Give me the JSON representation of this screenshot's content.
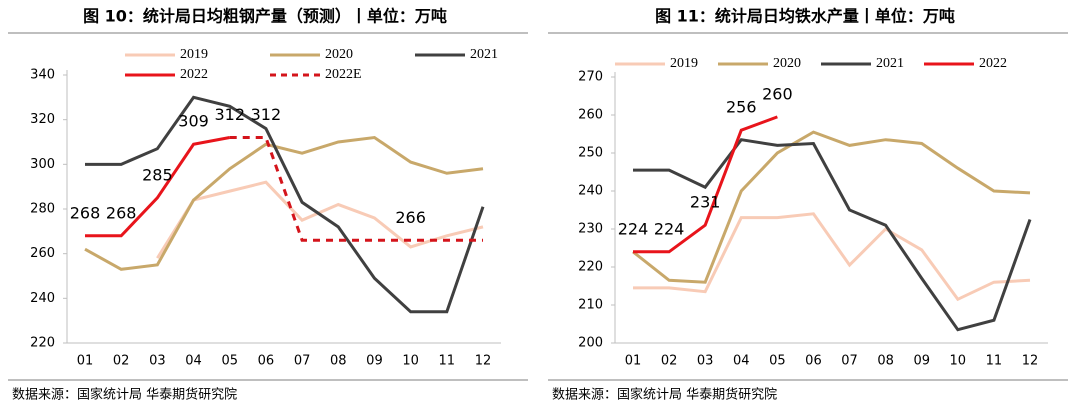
{
  "chart_data": [
    {
      "type": "line",
      "title": "图 10：统计局日均粗钢产量（预测）丨单位：万吨",
      "source": "数据来源：国家统计局  华泰期货研究院",
      "categories": [
        "01",
        "02",
        "03",
        "04",
        "05",
        "06",
        "07",
        "08",
        "09",
        "10",
        "11",
        "12"
      ],
      "ylim": [
        220,
        340
      ],
      "yticks": [
        220,
        240,
        260,
        280,
        300,
        320,
        340
      ],
      "series": [
        {
          "name": "2019",
          "color": "#f8cbb6",
          "values": [
            null,
            null,
            258,
            284,
            288,
            292,
            275,
            282,
            276,
            263,
            268,
            272
          ]
        },
        {
          "name": "2020",
          "color": "#c8a86a",
          "values": [
            262,
            253,
            255,
            284,
            298,
            309,
            305,
            310,
            312,
            301,
            296,
            298
          ]
        },
        {
          "name": "2021",
          "color": "#404040",
          "values": [
            300,
            300,
            307,
            330,
            326,
            316,
            283,
            272,
            249,
            234,
            234,
            281
          ]
        },
        {
          "name": "2022",
          "color": "#e8141b",
          "values": [
            268,
            268,
            285,
            309,
            312,
            null,
            null,
            null,
            null,
            null,
            null,
            null
          ],
          "value_labels": [
            "268",
            "268",
            "285",
            "309",
            "312",
            null,
            null,
            null,
            null,
            null,
            null,
            null
          ]
        },
        {
          "name": "2022E",
          "color": "#d4141b",
          "dashed": true,
          "values": [
            null,
            null,
            null,
            null,
            312,
            312,
            266,
            266,
            266,
            266,
            266,
            266
          ],
          "value_labels": [
            null,
            null,
            null,
            null,
            null,
            "312",
            null,
            null,
            null,
            "266",
            null,
            null
          ]
        }
      ]
    },
    {
      "type": "line",
      "title": "图 11：统计局日均铁水产量丨单位：万吨",
      "source": "数据来源：国家统计局  华泰期货研究院",
      "categories": [
        "01",
        "02",
        "03",
        "04",
        "05",
        "06",
        "07",
        "08",
        "09",
        "10",
        "11",
        "12"
      ],
      "ylim": [
        200,
        270
      ],
      "yticks": [
        200,
        210,
        220,
        230,
        240,
        250,
        260,
        270
      ],
      "series": [
        {
          "name": "2019",
          "color": "#f8cbb6",
          "values": [
            214.5,
            214.5,
            213.5,
            233,
            233,
            234,
            220.5,
            230,
            224.5,
            211.5,
            216,
            216.5
          ]
        },
        {
          "name": "2020",
          "color": "#c8a86a",
          "values": [
            224,
            216.5,
            216,
            240,
            250,
            255.5,
            252,
            253.5,
            252.5,
            246,
            240,
            239.5
          ]
        },
        {
          "name": "2021",
          "color": "#404040",
          "values": [
            245.5,
            245.5,
            241,
            253.5,
            252,
            252.5,
            235,
            231,
            217,
            203.5,
            206,
            232.5
          ]
        },
        {
          "name": "2022",
          "color": "#e8141b",
          "values": [
            224,
            224,
            231,
            256,
            259.5,
            null,
            null,
            null,
            null,
            null,
            null,
            null
          ],
          "value_labels": [
            "224",
            "224",
            "231",
            "256",
            "260",
            null,
            null,
            null,
            null,
            null,
            null,
            null
          ]
        }
      ]
    }
  ]
}
